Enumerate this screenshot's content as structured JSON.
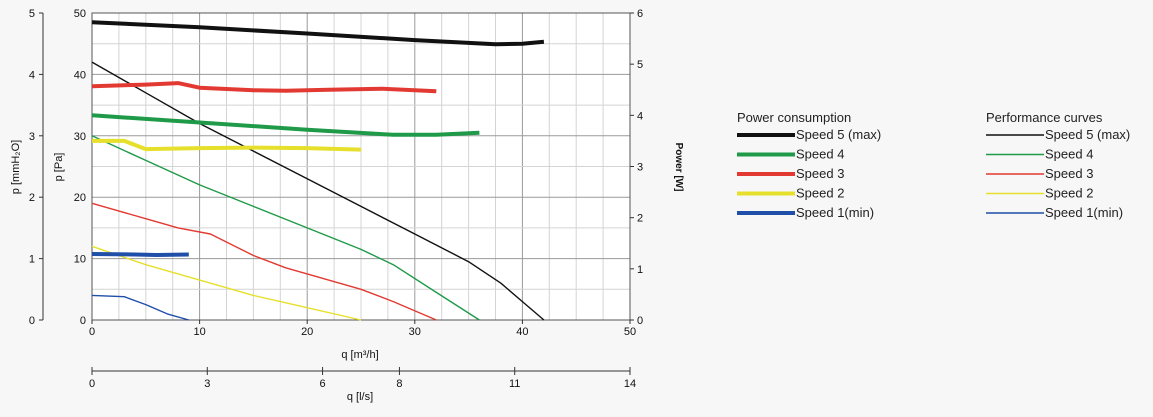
{
  "chart_data": {
    "type": "line",
    "xlabel": "q [m³/h]",
    "x2label": "q [l/s]",
    "ylabel_left_outer": "p [mmH₂O]",
    "ylabel_left_inner": "p [Pa]",
    "ylabel_right": "Power [W]",
    "xlim": [
      0,
      50
    ],
    "x_ticks": [
      0,
      10,
      20,
      30,
      40,
      50
    ],
    "x2lim": [
      0,
      14
    ],
    "x2_ticks": [
      0,
      3,
      6,
      8,
      11,
      14
    ],
    "ylim_pa": [
      0,
      50
    ],
    "y_pa_ticks": [
      0,
      10,
      20,
      30,
      40,
      50
    ],
    "ylim_mmh2o": [
      0,
      5
    ],
    "y_mmh2o_ticks": [
      0,
      1,
      2,
      3,
      4,
      5
    ],
    "ylim_power": [
      0,
      6
    ],
    "y_power_ticks": [
      0,
      1,
      2,
      3,
      4,
      5,
      6
    ],
    "grid": true,
    "legend_power": {
      "title": "Power consumption",
      "entries": [
        "Speed 5 (max)",
        "Speed 4",
        "Speed 3",
        "Speed 2",
        "Speed 1(min)"
      ]
    },
    "legend_performance": {
      "title": "Performance curves",
      "entries": [
        "Speed 5 (max)",
        "Speed 4",
        "Speed 3",
        "Speed 2",
        "Speed 1(min)"
      ]
    },
    "series_colors": [
      "#111111",
      "#1e9a48",
      "#e23a32",
      "#e6e02c",
      "#1f4fa8"
    ],
    "power_series": [
      {
        "name": "Speed 5 (max)",
        "points": [
          [
            0,
            5.82
          ],
          [
            10,
            5.72
          ],
          [
            20,
            5.6
          ],
          [
            30,
            5.47
          ],
          [
            37.5,
            5.39
          ],
          [
            40,
            5.4
          ],
          [
            42,
            5.44
          ]
        ]
      },
      {
        "name": "Speed 4",
        "points": [
          [
            0,
            4.0
          ],
          [
            10,
            3.86
          ],
          [
            20,
            3.72
          ],
          [
            28,
            3.62
          ],
          [
            32,
            3.62
          ],
          [
            36,
            3.66
          ]
        ]
      },
      {
        "name": "Speed 3",
        "points": [
          [
            0,
            4.57
          ],
          [
            5,
            4.6
          ],
          [
            8,
            4.63
          ],
          [
            10,
            4.54
          ],
          [
            15,
            4.49
          ],
          [
            18,
            4.48
          ],
          [
            22,
            4.5
          ],
          [
            27,
            4.52
          ],
          [
            32,
            4.47
          ]
        ]
      },
      {
        "name": "Speed 2",
        "points": [
          [
            0,
            3.5
          ],
          [
            3,
            3.5
          ],
          [
            5,
            3.34
          ],
          [
            10,
            3.36
          ],
          [
            15,
            3.37
          ],
          [
            20,
            3.36
          ],
          [
            25,
            3.33
          ]
        ]
      },
      {
        "name": "Speed 1(min)",
        "points": [
          [
            0,
            1.29
          ],
          [
            4,
            1.28
          ],
          [
            6,
            1.27
          ],
          [
            9,
            1.28
          ]
        ]
      }
    ],
    "performance_series": [
      {
        "name": "Speed 5 (max)",
        "points": [
          [
            0,
            42
          ],
          [
            5,
            37
          ],
          [
            10,
            32
          ],
          [
            15,
            27.5
          ],
          [
            20,
            23
          ],
          [
            25,
            18.5
          ],
          [
            30,
            14
          ],
          [
            35,
            9.5
          ],
          [
            38,
            6
          ],
          [
            40,
            3
          ],
          [
            42,
            0
          ]
        ]
      },
      {
        "name": "Speed 4",
        "points": [
          [
            0,
            30
          ],
          [
            5,
            26
          ],
          [
            10,
            22
          ],
          [
            15,
            18.5
          ],
          [
            20,
            15
          ],
          [
            25,
            11.5
          ],
          [
            28,
            9
          ],
          [
            32,
            4.5
          ],
          [
            36,
            0
          ]
        ]
      },
      {
        "name": "Speed 3",
        "points": [
          [
            0,
            19
          ],
          [
            5,
            16.5
          ],
          [
            8,
            15
          ],
          [
            11,
            14
          ],
          [
            15,
            10.5
          ],
          [
            18,
            8.5
          ],
          [
            20,
            7.5
          ],
          [
            25,
            5
          ],
          [
            28,
            3
          ],
          [
            32,
            0
          ]
        ]
      },
      {
        "name": "Speed 2",
        "points": [
          [
            0,
            12
          ],
          [
            5,
            9
          ],
          [
            10,
            6.5
          ],
          [
            15,
            4
          ],
          [
            20,
            2
          ],
          [
            25,
            0
          ]
        ]
      },
      {
        "name": "Speed 1(min)",
        "points": [
          [
            0,
            4
          ],
          [
            3,
            3.8
          ],
          [
            5,
            2.5
          ],
          [
            7,
            1
          ],
          [
            9,
            0
          ]
        ]
      }
    ]
  }
}
